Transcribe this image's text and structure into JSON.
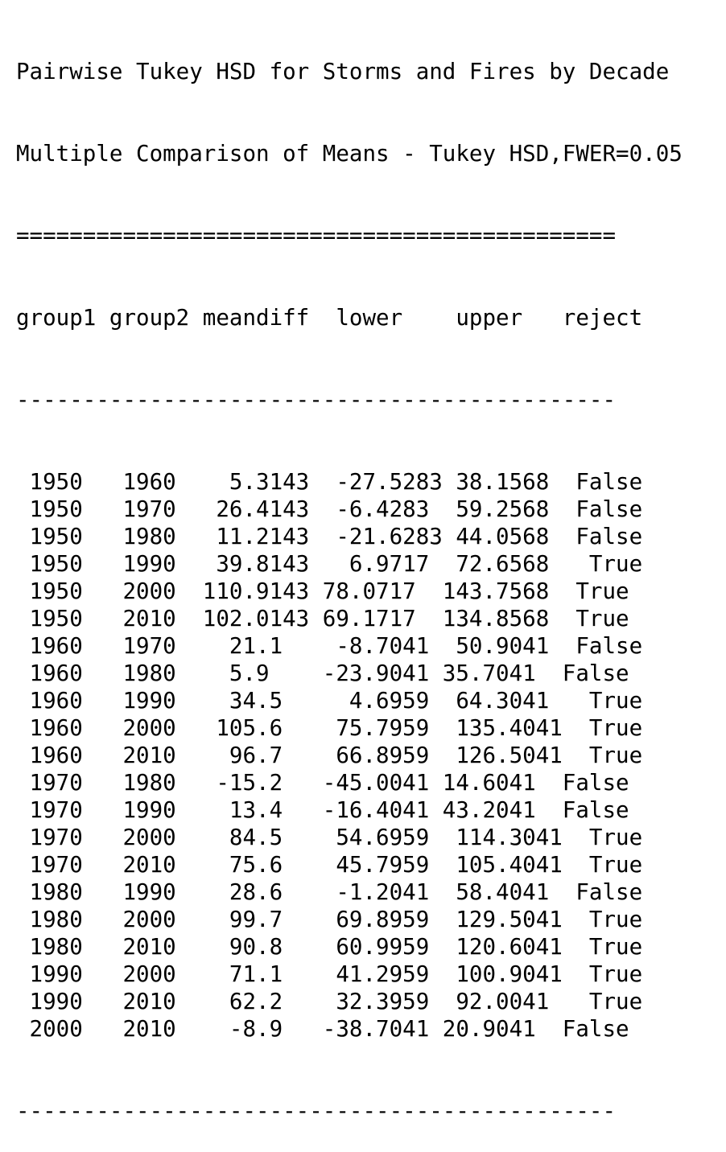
{
  "title": "Pairwise Tukey HSD for Storms and Fires by Decade",
  "subtitle": "Multiple Comparison of Means - Tukey HSD,FWER=0.05",
  "double_rule": "=============================================",
  "single_rule": "---------------------------------------------",
  "header": "group1 group2 meandiff  lower    upper   reject",
  "rows": [
    " 1950   1960    5.3143  -27.5283 38.1568  False",
    " 1950   1970   26.4143  -6.4283  59.2568  False",
    " 1950   1980   11.2143  -21.6283 44.0568  False",
    " 1950   1990   39.8143   6.9717  72.6568   True",
    " 1950   2000  110.9143 78.0717  143.7568  True",
    " 1950   2010  102.0143 69.1717  134.8568  True",
    " 1960   1970    21.1    -8.7041  50.9041  False",
    " 1960   1980    5.9    -23.9041 35.7041  False",
    " 1960   1990    34.5     4.6959  64.3041   True",
    " 1960   2000   105.6    75.7959  135.4041  True",
    " 1960   2010    96.7    66.8959  126.5041  True",
    " 1970   1980   -15.2   -45.0041 14.6041  False",
    " 1970   1990    13.4   -16.4041 43.2041  False",
    " 1970   2000    84.5    54.6959  114.3041  True",
    " 1970   2010    75.6    45.7959  105.4041  True",
    " 1980   1990    28.6    -1.2041  58.4041  False",
    " 1980   2000    99.7    69.8959  129.5041  True",
    " 1980   2010    90.8    60.9959  120.6041  True",
    " 1990   2000    71.1    41.2959  100.9041  True",
    " 1990   2010    62.2    32.3959  92.0041   True",
    " 2000   2010    -8.9   -38.7041 20.9041  False"
  ]
}
